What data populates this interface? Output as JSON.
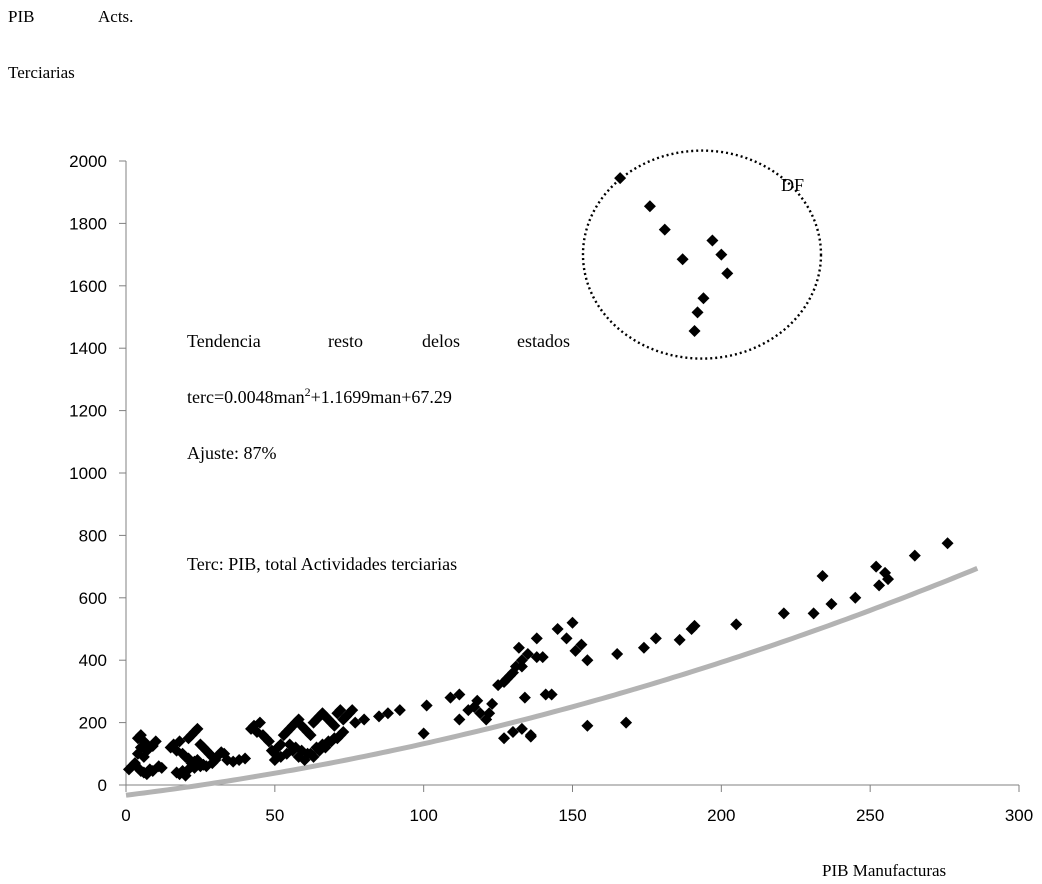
{
  "chart_data": {
    "type": "scatter",
    "title": "",
    "ylabel_line1_left": "PIB",
    "ylabel_line1_right": "Acts.",
    "ylabel_line2": "Terciarias",
    "xlabel": "PIB Manufacturas",
    "xlim": [
      0,
      300
    ],
    "ylim": [
      0,
      2000
    ],
    "x_ticks": [
      0,
      50,
      100,
      150,
      200,
      250,
      300
    ],
    "y_ticks": [
      0,
      200,
      400,
      600,
      800,
      1000,
      1200,
      1400,
      1600,
      1800,
      2000
    ],
    "grid": false,
    "colors": {
      "markers": "#000000",
      "trend": "#b3b3b3",
      "axes": "#808080",
      "circle": "#000000"
    },
    "series": [
      {
        "marker": "diamond",
        "x": [
          1,
          2,
          3,
          4,
          5,
          6,
          7,
          8,
          4,
          5,
          6,
          7,
          8,
          9,
          10,
          11,
          12,
          3,
          5,
          7,
          4,
          6,
          9,
          15,
          16,
          17,
          18,
          19,
          20,
          21,
          22,
          23,
          24,
          25,
          26,
          27,
          28,
          29,
          30,
          31,
          32,
          17,
          19,
          21,
          23,
          25,
          20,
          22,
          24,
          26,
          18,
          21,
          23,
          27,
          29,
          33,
          34,
          36,
          38,
          40,
          42,
          43,
          44,
          45,
          46,
          47,
          48,
          49,
          50,
          51,
          52,
          53,
          54,
          55,
          56,
          57,
          58,
          59,
          60,
          61,
          62,
          63,
          64,
          65,
          66,
          67,
          68,
          69,
          70,
          71,
          72,
          73,
          74,
          75,
          76,
          77,
          50,
          52,
          54,
          56,
          58,
          60,
          62,
          64,
          66,
          68,
          70,
          72,
          55,
          57,
          59,
          61,
          63,
          65,
          67,
          69,
          71,
          73,
          80,
          85,
          88,
          92,
          100,
          101,
          109,
          112,
          112,
          115,
          117,
          118,
          119,
          121,
          122,
          123,
          125,
          127,
          128,
          129,
          130,
          131,
          133,
          135,
          138,
          141,
          127,
          130,
          133,
          136,
          132,
          133,
          134,
          136,
          138,
          140,
          143,
          145,
          148,
          150,
          151,
          153,
          155,
          165,
          174,
          178,
          186,
          190,
          191,
          205,
          221,
          231,
          234,
          237,
          245,
          252,
          253,
          255,
          256,
          265,
          276,
          155,
          168
        ],
        "y": [
          50,
          60,
          65,
          55,
          45,
          40,
          35,
          50,
          150,
          160,
          140,
          130,
          120,
          125,
          140,
          60,
          55,
          70,
          120,
          110,
          100,
          90,
          45,
          120,
          130,
          110,
          140,
          100,
          90,
          150,
          160,
          170,
          180,
          130,
          120,
          110,
          100,
          90,
          80,
          95,
          105,
          40,
          45,
          50,
          55,
          60,
          30,
          70,
          80,
          65,
          35,
          85,
          75,
          60,
          70,
          100,
          80,
          75,
          80,
          85,
          180,
          190,
          170,
          200,
          160,
          150,
          140,
          110,
          100,
          120,
          130,
          160,
          170,
          180,
          190,
          200,
          210,
          190,
          180,
          170,
          160,
          200,
          210,
          220,
          230,
          220,
          210,
          200,
          190,
          230,
          240,
          210,
          220,
          230,
          240,
          200,
          80,
          90,
          100,
          110,
          90,
          80,
          100,
          120,
          130,
          140,
          150,
          160,
          130,
          120,
          110,
          100,
          90,
          110,
          120,
          140,
          150,
          170,
          210,
          220,
          230,
          240,
          165,
          255,
          280,
          290,
          210,
          240,
          250,
          270,
          230,
          210,
          230,
          260,
          320,
          330,
          340,
          350,
          360,
          380,
          400,
          420,
          410,
          290,
          150,
          170,
          180,
          160,
          440,
          380,
          280,
          155,
          470,
          410,
          290,
          500,
          470,
          520,
          430,
          450,
          400,
          420,
          440,
          470,
          465,
          500,
          510,
          515,
          550,
          550,
          670,
          580,
          600,
          700,
          640,
          680,
          660,
          735,
          775,
          190,
          200
        ]
      },
      {
        "name": "DF",
        "marker": "diamond",
        "x": [
          166,
          176,
          181,
          187,
          197,
          200,
          202,
          191,
          192,
          194
        ],
        "y": [
          1945,
          1855,
          1780,
          1685,
          1745,
          1700,
          1640,
          1455,
          1515,
          1560
        ]
      }
    ],
    "trendline": {
      "color": "#b3b3b3",
      "a": 0.0048,
      "b": 1.1699,
      "c": 67.29,
      "x_range": [
        0,
        286
      ]
    },
    "annotations": {
      "circle_label": "DF",
      "trend_words": [
        "Tendencia",
        "resto",
        "delos",
        "estados"
      ],
      "equation_prefix": "terc=0.0048man",
      "equation_sup": "2",
      "equation_suffix": "+1.1699man+67.29",
      "fit": "Ajuste: 87%",
      "note": "Terc: PIB, total Actividades terciarias"
    }
  }
}
